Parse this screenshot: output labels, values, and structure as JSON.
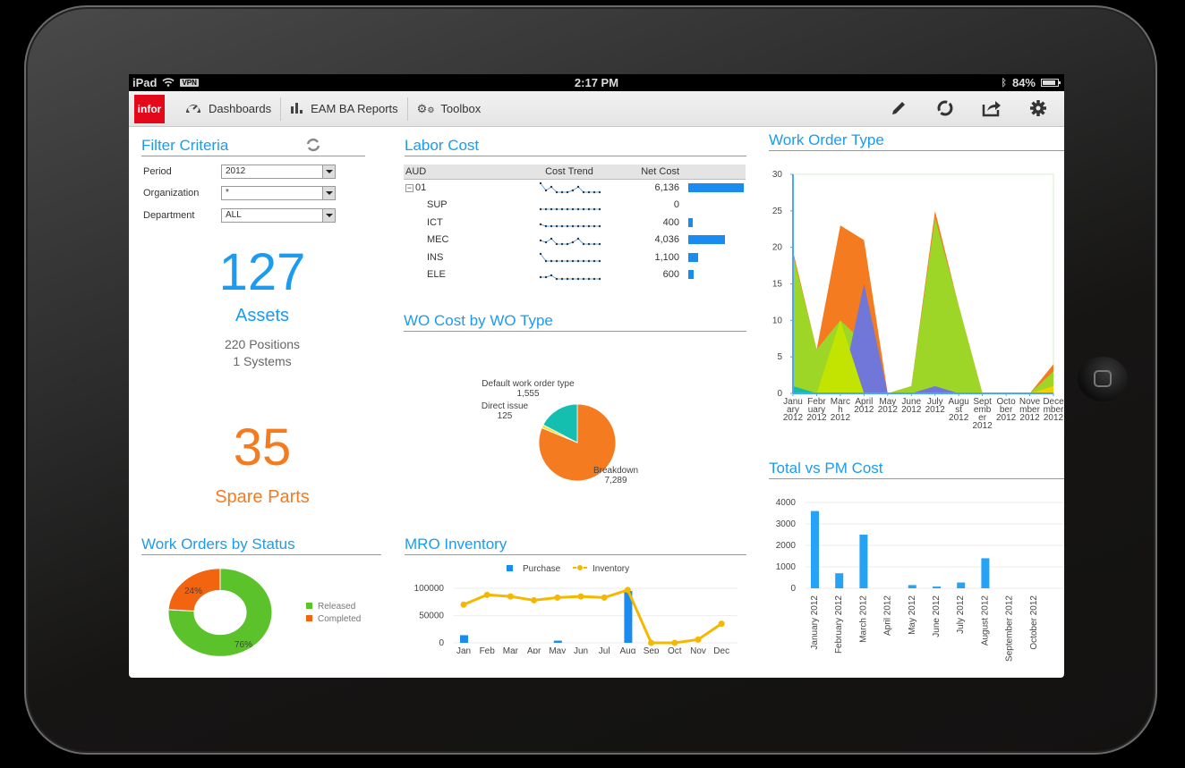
{
  "statusbar": {
    "device": "iPad",
    "vpn": "VPN",
    "time": "2:17 PM",
    "battery": "84%"
  },
  "toolbar": {
    "logo": "infor",
    "nav": [
      {
        "label": "Dashboards",
        "icon": "gauge-icon"
      },
      {
        "label": "EAM BA Reports",
        "icon": "bar-chart-icon"
      },
      {
        "label": "Toolbox",
        "icon": "gears-icon"
      }
    ],
    "actions": [
      "pencil-icon",
      "refresh-icon",
      "share-icon",
      "gear-icon"
    ]
  },
  "filter": {
    "title": "Filter Criteria",
    "rows": [
      {
        "label": "Period",
        "value": "2012"
      },
      {
        "label": "Organization",
        "value": "*"
      },
      {
        "label": "Department",
        "value": "ALL"
      }
    ]
  },
  "kpi": {
    "assets_count": "127",
    "assets_label": "Assets",
    "positions": "220 Positions",
    "systems": "1 Systems",
    "spare_count": "35",
    "spare_label": "Spare Parts"
  },
  "colors": {
    "accent_blue": "#1c9bef",
    "accent_orange": "#f47b20",
    "brand_red": "#e3081a"
  },
  "labor": {
    "title": "Labor Cost",
    "headers": [
      "AUD",
      "Cost Trend",
      "Net Cost"
    ],
    "rows": [
      {
        "name": "01",
        "value": "6,136",
        "num": 6136,
        "expand": "−",
        "trend": [
          1,
          5,
          3,
          6,
          6,
          6,
          5,
          3,
          6,
          6,
          6,
          6
        ]
      },
      {
        "name": "SUP",
        "value": "0",
        "num": 0,
        "trend": [
          6,
          6,
          6,
          6,
          6,
          6,
          6,
          6,
          6,
          6,
          6,
          6
        ]
      },
      {
        "name": "ICT",
        "value": "400",
        "num": 400,
        "trend": [
          5,
          6,
          6,
          6,
          6,
          6,
          6,
          6,
          6,
          6,
          6,
          6
        ]
      },
      {
        "name": "MEC",
        "value": "4,036",
        "num": 4036,
        "trend": [
          4,
          5,
          3,
          6,
          6,
          6,
          5,
          3,
          6,
          6,
          6,
          6
        ]
      },
      {
        "name": "INS",
        "value": "1,100",
        "num": 1100,
        "trend": [
          2,
          6,
          6,
          6,
          6,
          6,
          6,
          6,
          6,
          6,
          6,
          6
        ]
      },
      {
        "name": "ELE",
        "value": "600",
        "num": 600,
        "trend": [
          5,
          5,
          4,
          6,
          6,
          6,
          6,
          6,
          6,
          6,
          6,
          6
        ]
      }
    ]
  },
  "wo_cost": {
    "title": "WO Cost by WO Type"
  },
  "work_status": {
    "title": "Work Orders by Status"
  },
  "mro": {
    "title": "MRO Inventory"
  },
  "work_order_type": {
    "title": "Work Order Type"
  },
  "total_pm": {
    "title": "Total vs PM Cost"
  },
  "chart_data": [
    {
      "id": "wo_cost_pie",
      "type": "pie",
      "title": "WO Cost by WO Type",
      "categories": [
        "Breakdown",
        "Direct issue",
        "Default work order type"
      ],
      "values": [
        7289,
        125,
        1555
      ],
      "labels": [
        "7,289",
        "125",
        "1,555"
      ],
      "colors": [
        "#f47b20",
        "#f5e03a",
        "#15bfb0"
      ]
    },
    {
      "id": "status_donut",
      "type": "pie",
      "title": "Work Orders by Status",
      "categories": [
        "Released",
        "Completed"
      ],
      "values": [
        76,
        24
      ],
      "labels": [
        "76%",
        "24%"
      ],
      "colors": [
        "#5cc22c",
        "#f2640f"
      ],
      "legend_position": "right"
    },
    {
      "id": "mro_inventory",
      "type": "bar",
      "title": "MRO Inventory",
      "categories": [
        "Jan",
        "Feb",
        "Mar",
        "Apr",
        "May",
        "Jun",
        "Jul",
        "Aug",
        "Sep",
        "Oct",
        "Nov",
        "Dec"
      ],
      "series": [
        {
          "name": "Purchase",
          "type": "bar",
          "color": "#1a8cf0",
          "values": [
            14000,
            0,
            0,
            0,
            4000,
            0,
            0,
            95000,
            0,
            0,
            0,
            0
          ]
        },
        {
          "name": "Inventory",
          "type": "line",
          "color": "#f5b800",
          "values": [
            70000,
            88000,
            85000,
            78000,
            83000,
            85000,
            83000,
            97000,
            0,
            0,
            6000,
            35000
          ]
        }
      ],
      "yticks": [
        "100000",
        "50000",
        "0"
      ],
      "ylim": [
        0,
        100000
      ],
      "legend_position": "top",
      "grid": true
    },
    {
      "id": "work_order_type_area",
      "type": "area",
      "title": "Work Order Type",
      "categories": [
        "January 2012",
        "February 2012",
        "March 2012",
        "April 2012",
        "May 2012",
        "June 2012",
        "July 2012",
        "August 2012",
        "September 2012",
        "October 2012",
        "November 2012",
        "December 2012"
      ],
      "xtick_labels": [
        [
          "Janu",
          "ary",
          "2012"
        ],
        [
          "Febr",
          "uary",
          "2012"
        ],
        [
          "Marc",
          "h",
          "2012"
        ],
        [
          "April",
          "2012"
        ],
        [
          "May",
          "2012"
        ],
        [
          "June",
          "2012"
        ],
        [
          "July",
          "2012"
        ],
        [
          "Augu",
          "st",
          "2012"
        ],
        [
          "Sept",
          "emb",
          "er",
          "2012"
        ],
        [
          "Octo",
          "ber",
          "2012"
        ],
        [
          "Nove",
          "mber",
          "2012"
        ],
        [
          "Dece",
          "mber",
          "2012"
        ]
      ],
      "series": [
        {
          "name": "teal",
          "color": "#16b8b0",
          "values": [
            1,
            0,
            0,
            0,
            0,
            0,
            0,
            0,
            0,
            0,
            0,
            0
          ]
        },
        {
          "name": "yellow",
          "color": "#f5d000",
          "values": [
            0,
            0,
            0,
            0,
            0,
            0,
            0,
            0,
            0,
            0,
            0,
            1
          ]
        },
        {
          "name": "lime",
          "color": "#c2e400",
          "values": [
            0,
            0,
            10,
            0,
            0,
            0,
            0,
            0,
            0,
            0,
            0,
            0
          ]
        },
        {
          "name": "purple",
          "color": "#7077d8",
          "values": [
            0,
            0,
            0,
            15,
            0,
            0,
            1,
            0,
            0,
            0,
            0,
            0
          ]
        },
        {
          "name": "green",
          "color": "#9dd626",
          "values": [
            19,
            6,
            10,
            7,
            0,
            1,
            24,
            12,
            0,
            0,
            0,
            3
          ]
        },
        {
          "name": "orange",
          "color": "#f47b20",
          "values": [
            19.5,
            6,
            23,
            21,
            0,
            1,
            25,
            12,
            0,
            0,
            0,
            4
          ]
        }
      ],
      "yticks": [
        0,
        5,
        10,
        15,
        20,
        25,
        30
      ],
      "ylim": [
        0,
        30
      ]
    },
    {
      "id": "total_vs_pm_cost",
      "type": "bar",
      "title": "Total vs PM Cost",
      "categories": [
        "January 2012",
        "February 2012",
        "March 2012",
        "April 2012",
        "May 2012",
        "June 2012",
        "July 2012",
        "August 2012",
        "September 2012",
        "October 2012"
      ],
      "values": [
        3600,
        700,
        2500,
        0,
        150,
        80,
        270,
        1400,
        0,
        0
      ],
      "yticks": [
        4000,
        3000,
        2000,
        1000,
        0
      ],
      "ylim": [
        0,
        4000
      ],
      "color": "#27a3f5",
      "grid": true
    }
  ]
}
